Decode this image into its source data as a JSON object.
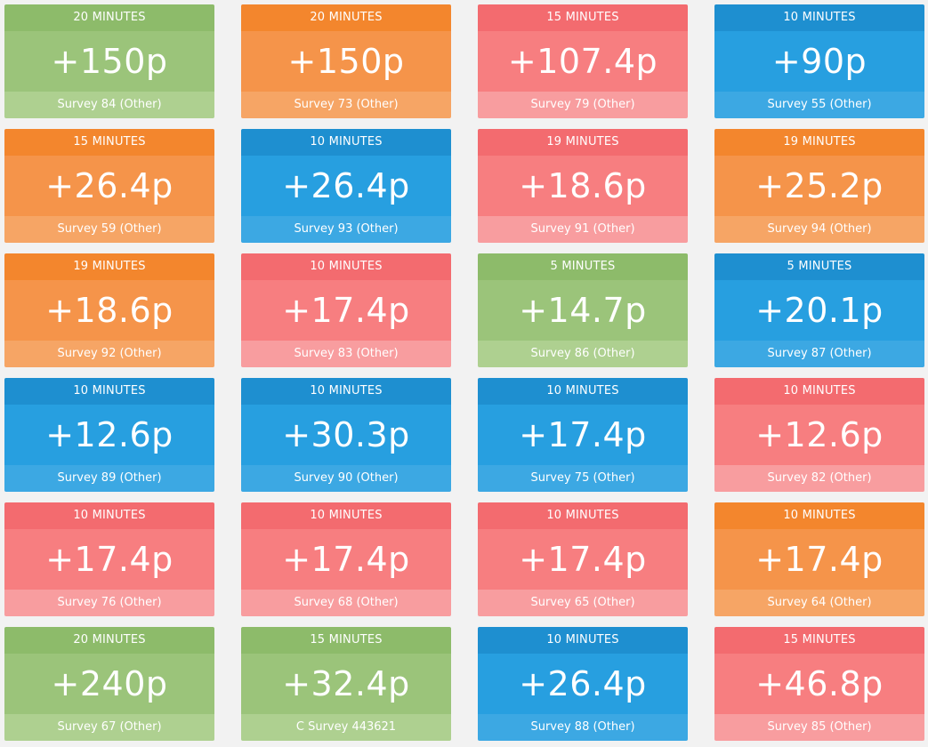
{
  "colors": {
    "green": "#9bc47a",
    "orange": "#f5944a",
    "red": "#f77e80",
    "blue": "#279fe0",
    "background": "#f2f2f2"
  },
  "cards": [
    {
      "time": "20 MINUTES",
      "reward": "+150p",
      "name": "Survey 84 (Other)",
      "color": "green"
    },
    {
      "time": "20 MINUTES",
      "reward": "+150p",
      "name": "Survey 73 (Other)",
      "color": "orange"
    },
    {
      "time": "15 MINUTES",
      "reward": "+107.4p",
      "name": "Survey 79 (Other)",
      "color": "red"
    },
    {
      "time": "10 MINUTES",
      "reward": "+90p",
      "name": "Survey 55 (Other)",
      "color": "blue"
    },
    {
      "time": "15 MINUTES",
      "reward": "+26.4p",
      "name": "Survey 59 (Other)",
      "color": "orange"
    },
    {
      "time": "10 MINUTES",
      "reward": "+26.4p",
      "name": "Survey 93 (Other)",
      "color": "blue"
    },
    {
      "time": "19 MINUTES",
      "reward": "+18.6p",
      "name": "Survey 91 (Other)",
      "color": "red"
    },
    {
      "time": "19 MINUTES",
      "reward": "+25.2p",
      "name": "Survey 94 (Other)",
      "color": "orange"
    },
    {
      "time": "19 MINUTES",
      "reward": "+18.6p",
      "name": "Survey 92 (Other)",
      "color": "orange"
    },
    {
      "time": "10 MINUTES",
      "reward": "+17.4p",
      "name": "Survey 83 (Other)",
      "color": "red"
    },
    {
      "time": "5 MINUTES",
      "reward": "+14.7p",
      "name": "Survey 86 (Other)",
      "color": "green"
    },
    {
      "time": "5 MINUTES",
      "reward": "+20.1p",
      "name": "Survey 87 (Other)",
      "color": "blue"
    },
    {
      "time": "10 MINUTES",
      "reward": "+12.6p",
      "name": "Survey 89 (Other)",
      "color": "blue"
    },
    {
      "time": "10 MINUTES",
      "reward": "+30.3p",
      "name": "Survey 90 (Other)",
      "color": "blue"
    },
    {
      "time": "10 MINUTES",
      "reward": "+17.4p",
      "name": "Survey 75 (Other)",
      "color": "blue"
    },
    {
      "time": "10 MINUTES",
      "reward": "+12.6p",
      "name": "Survey 82 (Other)",
      "color": "red"
    },
    {
      "time": "10 MINUTES",
      "reward": "+17.4p",
      "name": "Survey 76 (Other)",
      "color": "red"
    },
    {
      "time": "10 MINUTES",
      "reward": "+17.4p",
      "name": "Survey 68 (Other)",
      "color": "red"
    },
    {
      "time": "10 MINUTES",
      "reward": "+17.4p",
      "name": "Survey 65 (Other)",
      "color": "red"
    },
    {
      "time": "10 MINUTES",
      "reward": "+17.4p",
      "name": "Survey 64 (Other)",
      "color": "orange"
    },
    {
      "time": "20 MINUTES",
      "reward": "+240p",
      "name": "Survey 67 (Other)",
      "color": "green"
    },
    {
      "time": "15 MINUTES",
      "reward": "+32.4p",
      "name": "C Survey 443621",
      "color": "green"
    },
    {
      "time": "10 MINUTES",
      "reward": "+26.4p",
      "name": "Survey 88 (Other)",
      "color": "blue"
    },
    {
      "time": "15 MINUTES",
      "reward": "+46.8p",
      "name": "Survey 85 (Other)",
      "color": "red"
    }
  ]
}
